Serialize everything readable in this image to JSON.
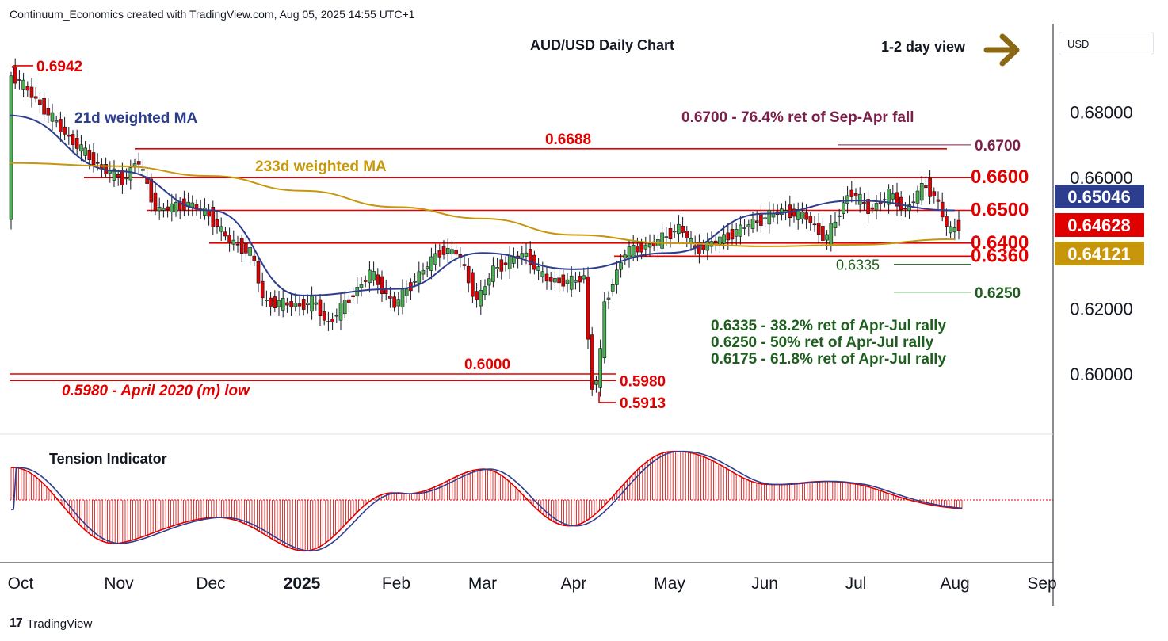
{
  "header": {
    "attribution": "Continuum_Economics created with TradingView.com, Aug 05, 2025 14:55 UTC+1"
  },
  "currency_selector": {
    "label": "USD"
  },
  "footer": {
    "brand": "TradingView"
  },
  "colors": {
    "red": "#e00000",
    "green": "#1e5e1e",
    "purple": "#7a1f4a",
    "blue": "#2d3e8f",
    "gold": "#c8960a",
    "candle_up": "#4caf50",
    "candle_down": "#e00000",
    "arrow": "#8b6914"
  },
  "chart_data": [
    {
      "type": "candlestick",
      "title": "AUD/USD Daily Chart",
      "subtitle": "1-2 day view",
      "x_ticks": [
        "Oct",
        "Nov",
        "Dec",
        "2025",
        "Feb",
        "Mar",
        "Apr",
        "May",
        "Jun",
        "Jul",
        "Aug",
        "Sep"
      ],
      "y_ticks": [
        "0.68000",
        "0.66000",
        "0.62000",
        "0.60000"
      ],
      "ylim": [
        0.588,
        0.7
      ],
      "grid": false,
      "price_labels": [
        {
          "text": "0.65046",
          "value": 0.65046,
          "color": "#2d3e8f",
          "meaning": "21d weighted MA"
        },
        {
          "text": "0.64628",
          "value": 0.64628,
          "color": "#e00000",
          "meaning": "last price"
        },
        {
          "text": "0.64121",
          "value": 0.64121,
          "color": "#c8960a",
          "meaning": "233d weighted MA"
        }
      ],
      "levels": [
        {
          "value": 0.6942,
          "label": "0.6942",
          "color": "red"
        },
        {
          "value": 0.67,
          "label": "0.6700",
          "color": "purple"
        },
        {
          "value": 0.6688,
          "label": "0.6688",
          "color": "red"
        },
        {
          "value": 0.66,
          "label": "0.6600",
          "color": "red"
        },
        {
          "value": 0.65,
          "label": "0.6500",
          "color": "red"
        },
        {
          "value": 0.64,
          "label": "0.6400",
          "color": "red"
        },
        {
          "value": 0.636,
          "label": "0.6360",
          "color": "red"
        },
        {
          "value": 0.6335,
          "label": "0.6335",
          "color": "green"
        },
        {
          "value": 0.625,
          "label": "0.6250",
          "color": "green"
        },
        {
          "value": 0.6,
          "label": "0.6000",
          "color": "red"
        },
        {
          "value": 0.598,
          "label": "0.5980",
          "color": "red"
        },
        {
          "value": 0.5913,
          "label": "0.5913",
          "color": "red"
        }
      ],
      "annotations": [
        {
          "text": "21d weighted MA",
          "color": "blue"
        },
        {
          "text": "233d weighted MA",
          "color": "gold"
        },
        {
          "text": "0.6700 - 76.4% ret of Sep-Apr fall",
          "color": "purple"
        },
        {
          "text": "0.6335 - 38.2% ret of Apr-Jul rally",
          "color": "green"
        },
        {
          "text": "0.6250 - 50% ret of Apr-Jul rally",
          "color": "green"
        },
        {
          "text": "0.6175 - 61.8% ret of Apr-Jul rally",
          "color": "green"
        },
        {
          "text": "0.5980 - April 2020 (m) low",
          "color": "red"
        }
      ],
      "series": [
        {
          "name": "21d weighted MA",
          "type": "line",
          "color": "#2d3e8f",
          "points": [
            [
              "Oct",
              0.679
            ],
            [
              "Nov",
              0.662
            ],
            [
              "Dec",
              0.65
            ],
            [
              "2025",
              0.624
            ],
            [
              "Feb",
              0.626
            ],
            [
              "Mar",
              0.637
            ],
            [
              "Apr",
              0.632
            ],
            [
              "May",
              0.637
            ],
            [
              "Jun",
              0.649
            ],
            [
              "Jul",
              0.653
            ],
            [
              "Aug",
              0.65
            ]
          ]
        },
        {
          "name": "233d weighted MA",
          "type": "line",
          "color": "#c8960a",
          "points": [
            [
              "Oct",
              0.6645
            ],
            [
              "Nov",
              0.6635
            ],
            [
              "Dec",
              0.6605
            ],
            [
              "2025",
              0.656
            ],
            [
              "Feb",
              0.651
            ],
            [
              "Mar",
              0.6475
            ],
            [
              "Apr",
              0.6425
            ],
            [
              "May",
              0.64
            ],
            [
              "Jun",
              0.639
            ],
            [
              "Jul",
              0.6395
            ],
            [
              "Aug",
              0.6412
            ]
          ]
        }
      ]
    },
    {
      "type": "area",
      "title": "Tension Indicator",
      "x_ticks": [
        "Oct",
        "Nov",
        "Dec",
        "2025",
        "Feb",
        "Mar",
        "Apr",
        "May",
        "Jun",
        "Jul",
        "Aug",
        "Sep"
      ],
      "ylim": [
        -1,
        1
      ],
      "series": [
        {
          "name": "Tension Indicator",
          "color": "#e00000",
          "points": [
            [
              "Oct",
              0.6
            ],
            [
              "Nov",
              -0.85
            ],
            [
              "Dec",
              -0.3
            ],
            [
              "2025",
              -0.95
            ],
            [
              "Feb",
              0.12
            ],
            [
              "Mar",
              0.55
            ],
            [
              "Apr",
              -0.5
            ],
            [
              "May",
              0.98
            ],
            [
              "Jun",
              0.35
            ],
            [
              "Jul",
              0.3
            ],
            [
              "Aug",
              -0.2
            ]
          ]
        }
      ]
    }
  ]
}
